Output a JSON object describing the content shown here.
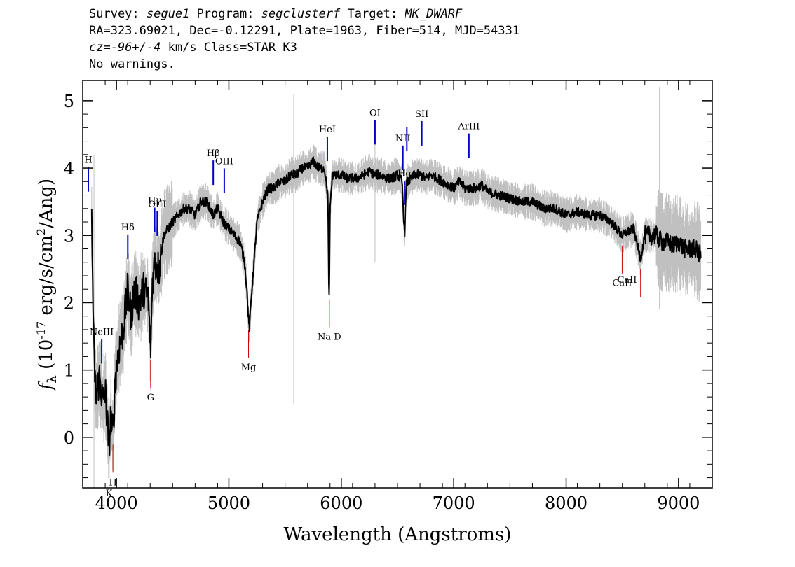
{
  "header": {
    "line1": {
      "survey_label": "Survey: ",
      "survey": "segue1",
      "program_label": " Program: ",
      "program": "segclusterf",
      "target_label": " Target: ",
      "target": "MK_DWARF"
    },
    "line2": "RA=323.69021, Dec=-0.12291, Plate=1963, Fiber=514, MJD=54331",
    "line3": {
      "cz_label": "cz=",
      "cz_value": "-96+/-4",
      "rest": " km/s Class=STAR K3"
    },
    "line4": "No warnings."
  },
  "chart_data": {
    "type": "line",
    "xlabel": "Wavelength (Angstroms)",
    "ylabel_parts": [
      "f",
      "λ",
      " (10",
      "-17",
      " erg/s/cm",
      "2",
      "/Ang)"
    ],
    "xlim": [
      3700,
      9300
    ],
    "ylim": [
      -0.75,
      5.3
    ],
    "xticks": [
      4000,
      5000,
      6000,
      7000,
      8000,
      9000
    ],
    "yticks": [
      0,
      1,
      2,
      3,
      4,
      5
    ],
    "colors": {
      "flux": "#000000",
      "error": "#c0c0c0",
      "emission": "#0000cc",
      "absorption": "#cc0000"
    },
    "grid": false,
    "series": [
      {
        "role": "flux",
        "x": [
          3780,
          3800,
          3820,
          3850,
          3880,
          3900,
          3920,
          3933,
          3950,
          3968,
          3990,
          4020,
          4060,
          4101,
          4130,
          4160,
          4200,
          4240,
          4280,
          4304,
          4320,
          4340,
          4380,
          4420,
          4460,
          4500,
          4550,
          4600,
          4650,
          4700,
          4750,
          4800,
          4861,
          4900,
          4950,
          5000,
          5050,
          5100,
          5140,
          5160,
          5175,
          5183,
          5200,
          5220,
          5250,
          5300,
          5350,
          5400,
          5450,
          5500,
          5550,
          5600,
          5650,
          5700,
          5750,
          5800,
          5850,
          5880,
          5890,
          5893,
          5900,
          5920,
          5950,
          6000,
          6050,
          6100,
          6150,
          6200,
          6250,
          6300,
          6350,
          6400,
          6450,
          6500,
          6540,
          6563,
          6580,
          6600,
          6650,
          6700,
          6750,
          6800,
          6850,
          6900,
          6950,
          7000,
          7050,
          7100,
          7150,
          7200,
          7250,
          7300,
          7400,
          7500,
          7600,
          7700,
          7800,
          7900,
          8000,
          8100,
          8200,
          8300,
          8400,
          8498,
          8542,
          8600,
          8662,
          8700,
          8750,
          8800,
          8850,
          8900,
          8950,
          9000,
          9050,
          9100,
          9150,
          9200
        ],
        "y": [
          3.2,
          1.2,
          0.6,
          0.9,
          0.5,
          0.7,
          0.2,
          -0.15,
          0.3,
          0.0,
          0.9,
          1.3,
          1.6,
          2.2,
          1.8,
          2.2,
          2.0,
          2.2,
          2.1,
          1.3,
          2.3,
          2.6,
          2.5,
          3.0,
          3.1,
          3.2,
          3.3,
          3.4,
          3.4,
          3.3,
          3.5,
          3.5,
          3.3,
          3.4,
          3.2,
          3.1,
          3.0,
          2.9,
          2.6,
          2.2,
          1.75,
          1.6,
          2.1,
          2.5,
          3.2,
          3.5,
          3.7,
          3.7,
          3.8,
          3.8,
          3.9,
          3.9,
          4.0,
          4.0,
          4.1,
          4.0,
          4.0,
          3.6,
          2.2,
          2.0,
          3.4,
          3.9,
          3.9,
          3.9,
          3.85,
          3.85,
          3.85,
          3.9,
          3.95,
          3.9,
          3.9,
          3.85,
          3.85,
          3.9,
          3.8,
          3.0,
          3.8,
          3.8,
          3.9,
          3.9,
          3.85,
          3.9,
          3.85,
          3.8,
          3.75,
          3.7,
          3.8,
          3.7,
          3.7,
          3.7,
          3.75,
          3.65,
          3.6,
          3.55,
          3.5,
          3.5,
          3.4,
          3.4,
          3.3,
          3.35,
          3.3,
          3.3,
          3.2,
          3.0,
          3.05,
          3.1,
          2.65,
          3.0,
          3.0,
          3.0,
          2.9,
          2.9,
          2.85,
          2.9,
          2.8,
          2.8,
          2.8,
          2.7
        ]
      }
    ],
    "lines": [
      {
        "label": "H",
        "x": 3750,
        "kind": "emission"
      },
      {
        "label": "NeIII",
        "x": 3869,
        "kind": "emission"
      },
      {
        "label": "Hδ",
        "x": 4101,
        "kind": "emission"
      },
      {
        "label": "Hγ",
        "x": 4340,
        "kind": "emission"
      },
      {
        "label": "OIII",
        "x": 4363,
        "kind": "emission"
      },
      {
        "label": "Hβ",
        "x": 4861,
        "kind": "emission"
      },
      {
        "label": "OIII",
        "x": 4959,
        "kind": "emission"
      },
      {
        "label": "HeI",
        "x": 5876,
        "kind": "emission"
      },
      {
        "label": "OI",
        "x": 6300,
        "kind": "emission"
      },
      {
        "label": "NII",
        "x": 6548,
        "kind": "emission"
      },
      {
        "label": "Hα",
        "x": 6563,
        "kind": "emission"
      },
      {
        "label": "NII",
        "x": 6583,
        "kind": "emission"
      },
      {
        "label": "SII",
        "x": 6716,
        "kind": "emission"
      },
      {
        "label": "ArIII",
        "x": 7135,
        "kind": "emission"
      },
      {
        "label": "K",
        "x": 3934,
        "kind": "absorption"
      },
      {
        "label": "H",
        "x": 3969,
        "kind": "absorption"
      },
      {
        "label": "G",
        "x": 4304,
        "kind": "absorption"
      },
      {
        "label": "Mg",
        "x": 5175,
        "kind": "absorption"
      },
      {
        "label": "Na D",
        "x": 5894,
        "kind": "absorption"
      },
      {
        "label": "CaII",
        "x": 8498,
        "kind": "absorption"
      },
      {
        "label": "CaII",
        "x": 8542,
        "kind": "absorption"
      },
      {
        "label": "CaII",
        "x": 8662,
        "kind": "absorption"
      }
    ]
  }
}
